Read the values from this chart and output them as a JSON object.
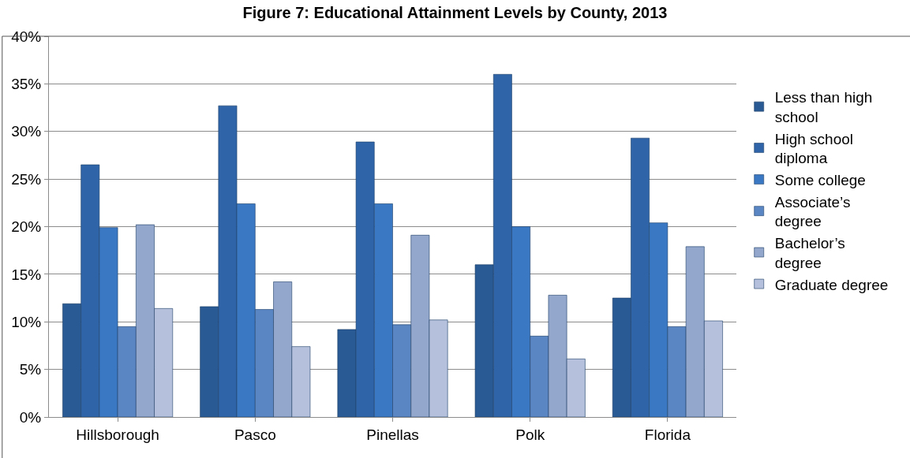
{
  "chart_data": {
    "type": "bar",
    "title": "Figure 7: Educational Attainment Levels by County, 2013",
    "categories": [
      "Hillsborough",
      "Pasco",
      "Pinellas",
      "Polk",
      "Florida"
    ],
    "series": [
      {
        "name": "Less than high school",
        "color": "#2a5a94",
        "values": [
          11.9,
          11.6,
          9.2,
          16.0,
          12.5
        ]
      },
      {
        "name": "High school diploma",
        "color": "#2f65a8",
        "values": [
          26.5,
          32.7,
          28.9,
          36.0,
          29.3
        ]
      },
      {
        "name": "Some college",
        "color": "#3a78c4",
        "values": [
          19.9,
          22.4,
          22.4,
          20.0,
          20.4
        ]
      },
      {
        "name": "Associate’s degree",
        "color": "#5b86c4",
        "values": [
          9.5,
          11.3,
          9.7,
          8.5,
          9.5
        ]
      },
      {
        "name": "Bachelor’s degree",
        "color": "#93a6cc",
        "values": [
          20.2,
          14.2,
          19.1,
          12.8,
          17.9
        ]
      },
      {
        "name": "Graduate degree",
        "color": "#b4c0dc",
        "values": [
          11.4,
          7.4,
          10.2,
          6.1,
          10.1
        ]
      }
    ],
    "ylim": [
      0,
      40
    ],
    "yticks": [
      {
        "value": 0,
        "label": "0%"
      },
      {
        "value": 5,
        "label": "5%"
      },
      {
        "value": 10,
        "label": "10%"
      },
      {
        "value": 15,
        "label": "15%"
      },
      {
        "value": 20,
        "label": "20%"
      },
      {
        "value": 25,
        "label": "25%"
      },
      {
        "value": 30,
        "label": "30%"
      },
      {
        "value": 35,
        "label": "35%"
      },
      {
        "value": 40,
        "label": "40%"
      }
    ],
    "grid": "y",
    "legend": "right"
  }
}
